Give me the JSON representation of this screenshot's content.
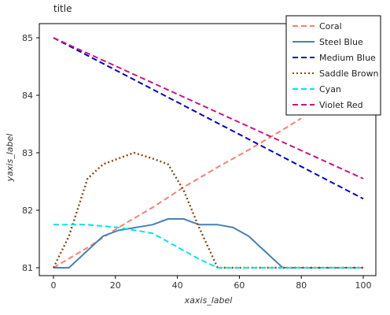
{
  "chart_data": {
    "type": "line",
    "title": "title",
    "xlabel": "xaxis_label",
    "ylabel": "yaxis_label",
    "xlim": [
      0,
      100
    ],
    "ylim": [
      81,
      85
    ],
    "x_ticks": [
      0,
      20,
      40,
      60,
      80,
      100
    ],
    "y_ticks": [
      81,
      82,
      83,
      84,
      85
    ],
    "grid": false,
    "legend_position": "right",
    "series": [
      {
        "name": "Coral",
        "color": "#FA8072",
        "style": "dashed",
        "points": [
          [
            0,
            81.0
          ],
          [
            11,
            81.35
          ],
          [
            21,
            81.7
          ],
          [
            32,
            82.05
          ],
          [
            42,
            82.4
          ],
          [
            53,
            82.75
          ],
          [
            63,
            83.05
          ],
          [
            74,
            83.4
          ],
          [
            80,
            83.6
          ]
        ]
      },
      {
        "name": "Steel Blue",
        "color": "#4682B4",
        "style": "solid",
        "points": [
          [
            0,
            81.0
          ],
          [
            5,
            81.0
          ],
          [
            11,
            81.3
          ],
          [
            16,
            81.55
          ],
          [
            21,
            81.65
          ],
          [
            32,
            81.75
          ],
          [
            37,
            81.85
          ],
          [
            42,
            81.85
          ],
          [
            47,
            81.75
          ],
          [
            53,
            81.75
          ],
          [
            58,
            81.7
          ],
          [
            63,
            81.55
          ],
          [
            68,
            81.3
          ],
          [
            74,
            81.0
          ],
          [
            100,
            81.0
          ]
        ]
      },
      {
        "name": "Medium Blue",
        "color": "#0000CD",
        "style": "dashed",
        "points": [
          [
            0,
            85.0
          ],
          [
            100,
            82.2
          ]
        ]
      },
      {
        "name": "Saddle Brown",
        "color": "#8B4513",
        "style": "dotted",
        "points": [
          [
            0,
            81.0
          ],
          [
            5,
            81.55
          ],
          [
            11,
            82.55
          ],
          [
            16,
            82.8
          ],
          [
            21,
            82.9
          ],
          [
            26,
            83.0
          ],
          [
            32,
            82.9
          ],
          [
            37,
            82.8
          ],
          [
            42,
            82.35
          ],
          [
            47,
            81.7
          ],
          [
            53,
            81.0
          ],
          [
            100,
            81.0
          ]
        ]
      },
      {
        "name": "Cyan",
        "color": "#00E5EE",
        "style": "dashed",
        "points": [
          [
            0,
            81.75
          ],
          [
            5,
            81.75
          ],
          [
            11,
            81.75
          ],
          [
            21,
            81.7
          ],
          [
            32,
            81.6
          ],
          [
            42,
            81.3
          ],
          [
            47,
            81.15
          ],
          [
            53,
            81.0
          ],
          [
            100,
            81.0
          ]
        ]
      },
      {
        "name": "Violet Red",
        "color": "#C71585",
        "style": "dashed",
        "points": [
          [
            0,
            85.0
          ],
          [
            100,
            82.55
          ]
        ]
      }
    ]
  }
}
